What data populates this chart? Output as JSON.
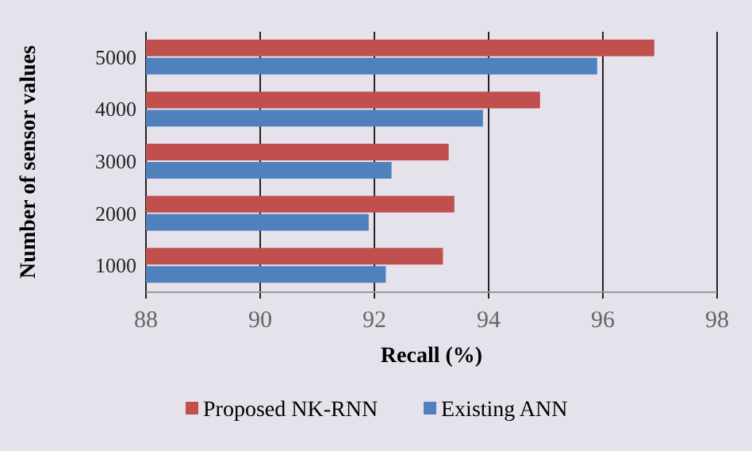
{
  "chart_data": {
    "type": "bar",
    "orientation": "horizontal",
    "xlabel": "Recall (%)",
    "ylabel": "Number of sensor values",
    "categories": [
      "5000",
      "4000",
      "3000",
      "2000",
      "1000"
    ],
    "series": [
      {
        "name": "Proposed NK-RNN",
        "color": "#c0504d",
        "values": [
          96.9,
          94.9,
          93.3,
          93.4,
          93.2
        ]
      },
      {
        "name": "Existing ANN",
        "color": "#4f81bd",
        "values": [
          95.9,
          93.9,
          92.3,
          91.9,
          92.2
        ]
      }
    ],
    "xlim": [
      88,
      98
    ],
    "xticks": [
      88,
      90,
      92,
      94,
      96,
      98
    ],
    "grid": "x",
    "legend": "bottom"
  }
}
